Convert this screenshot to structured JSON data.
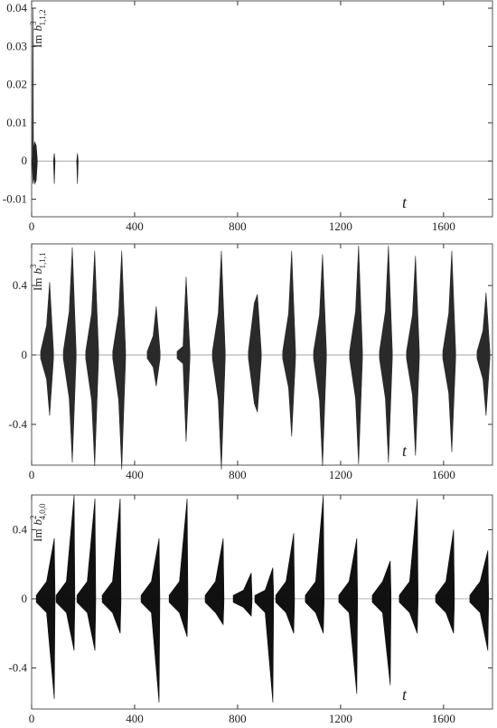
{
  "chart_data": [
    {
      "type": "area",
      "ylabel": {
        "text": "Im",
        "symbol": "b",
        "sup": "3",
        "sub": "1,1,2"
      },
      "xlabel": "t",
      "x": [
        0,
        3,
        5,
        7,
        12,
        18,
        22,
        40,
        85,
        88,
        91,
        130,
        175,
        178,
        181,
        220
      ],
      "series": [
        {
          "color": "#222",
          "values": [
            0,
            0.001,
            0.04,
            0.003,
            0.005,
            0.004,
            0.0005,
            null,
            0,
            0.002,
            0,
            null,
            0,
            0.002,
            0,
            null
          ]
        },
        {
          "color": "#222",
          "values": [
            0,
            -0.002,
            -0.006,
            -0.004,
            -0.006,
            -0.005,
            -0.0005,
            null,
            0,
            -0.006,
            0,
            null,
            0,
            -0.006,
            0,
            null
          ]
        }
      ],
      "xlim": [
        0,
        1790
      ],
      "xticks": [
        0,
        400,
        800,
        1200,
        1600
      ],
      "ylim": [
        -0.0146,
        0.0419
      ],
      "yticks": [
        -0.01,
        0,
        0.01,
        0.02,
        0.03,
        0.04
      ]
    },
    {
      "type": "area",
      "ylabel": {
        "text": "Im",
        "symbol": "b",
        "sup": "3",
        "sub": "1,1,1"
      },
      "xlabel": "t",
      "x": [
        35,
        58,
        70,
        85,
        95,
        123,
        146,
        158,
        173,
        183,
        210,
        233,
        245,
        260,
        270,
        315,
        338,
        350,
        365,
        375,
        449,
        472,
        484,
        499,
        509,
        565,
        588,
        600,
        615,
        625,
        702,
        725,
        737,
        752,
        762,
        842,
        865,
        877,
        892,
        902,
        975,
        998,
        1010,
        1025,
        1035,
        1095,
        1118,
        1130,
        1145,
        1155,
        1235,
        1258,
        1270,
        1285,
        1295,
        1351,
        1374,
        1386,
        1401,
        1411,
        1456,
        1479,
        1491,
        1506,
        1516,
        1597,
        1620,
        1632,
        1647,
        1657,
        1730,
        1753,
        1765,
        1780,
        1788
      ],
      "series": [
        {
          "color": "#2a2a2a",
          "values": [
            0.02,
            0.17,
            0.42,
            0.02,
            null,
            0.02,
            0.25,
            0.62,
            0.02,
            null,
            0.02,
            0.24,
            0.6,
            0.02,
            null,
            0.02,
            0.24,
            0.6,
            0.02,
            null,
            0.02,
            0.11,
            0.28,
            0.02,
            null,
            0.02,
            0.05,
            0.45,
            0.02,
            null,
            0.02,
            0.24,
            0.6,
            0.02,
            null,
            0.02,
            0.3,
            0.35,
            0.02,
            null,
            0.02,
            0.24,
            0.6,
            0.02,
            null,
            0.02,
            0.23,
            0.58,
            0.02,
            null,
            0.02,
            0.25,
            0.63,
            0.02,
            null,
            0.02,
            0.25,
            0.63,
            0.02,
            null,
            0.02,
            0.23,
            0.57,
            0.02,
            null,
            0.02,
            0.24,
            0.6,
            0.02,
            null,
            0.02,
            0.14,
            0.36,
            0.02,
            null
          ]
        },
        {
          "color": "#2a2a2a",
          "values": [
            -0.02,
            -0.14,
            -0.35,
            -0.02,
            null,
            -0.02,
            -0.25,
            -0.62,
            -0.02,
            null,
            -0.02,
            -0.26,
            -0.64,
            -0.02,
            null,
            -0.02,
            -0.26,
            -0.66,
            -0.02,
            null,
            -0.02,
            -0.07,
            -0.18,
            -0.02,
            null,
            -0.02,
            -0.05,
            -0.5,
            -0.02,
            null,
            -0.02,
            -0.26,
            -0.66,
            -0.02,
            null,
            -0.02,
            -0.28,
            -0.33,
            -0.02,
            null,
            -0.02,
            -0.19,
            -0.47,
            -0.02,
            null,
            -0.02,
            -0.26,
            -0.64,
            -0.02,
            null,
            -0.02,
            -0.25,
            -0.63,
            -0.02,
            null,
            -0.02,
            -0.25,
            -0.62,
            -0.02,
            null,
            -0.02,
            -0.23,
            -0.58,
            -0.02,
            null,
            -0.02,
            -0.22,
            -0.56,
            -0.02,
            null,
            -0.02,
            -0.14,
            -0.35,
            -0.02,
            null
          ]
        }
      ],
      "xlim": [
        0,
        1790
      ],
      "xticks": [
        0,
        400,
        800,
        1200,
        1600
      ],
      "ylim": [
        -0.635,
        0.64
      ],
      "yticks": [
        -0.4,
        0,
        0.4
      ]
    },
    {
      "type": "area",
      "ylabel": {
        "text": "Im",
        "symbol": "b",
        "sup": "2",
        "sub": "4,0,0"
      },
      "xlabel": "t",
      "x": [
        18,
        58,
        88,
        91,
        98,
        95,
        135,
        165,
        168,
        175,
        176,
        216,
        246,
        249,
        256,
        274,
        314,
        344,
        347,
        354,
        425,
        465,
        495,
        498,
        505,
        534,
        574,
        604,
        607,
        614,
        674,
        714,
        744,
        747,
        754,
        783,
        823,
        853,
        856,
        863,
        867,
        907,
        937,
        940,
        947,
        948,
        988,
        1018,
        1021,
        1028,
        1063,
        1103,
        1133,
        1136,
        1143,
        1193,
        1233,
        1263,
        1266,
        1273,
        1323,
        1363,
        1393,
        1396,
        1403,
        1428,
        1468,
        1498,
        1501,
        1508,
        1569,
        1609,
        1639,
        1642,
        1649,
        1702,
        1742,
        1772,
        1775,
        1782
      ],
      "series": [
        {
          "color": "#111",
          "values": [
            0.02,
            0.1,
            0.35,
            0.02,
            null,
            0.02,
            0.1,
            0.6,
            0.02,
            null,
            0.02,
            0.1,
            0.58,
            0.02,
            null,
            0.02,
            0.1,
            0.58,
            0.02,
            null,
            0.02,
            0.1,
            0.35,
            0.02,
            null,
            0.02,
            0.1,
            0.58,
            0.02,
            null,
            0.02,
            0.1,
            0.35,
            0.02,
            null,
            0.02,
            0.05,
            0.15,
            0.02,
            null,
            0.02,
            0.05,
            0.18,
            0.02,
            null,
            0.02,
            0.1,
            0.38,
            0.02,
            null,
            0.02,
            0.1,
            0.6,
            0.02,
            null,
            0.02,
            0.1,
            0.35,
            0.02,
            null,
            0.02,
            0.1,
            0.22,
            0.02,
            null,
            0.02,
            0.1,
            0.58,
            0.02,
            null,
            0.02,
            0.1,
            0.4,
            0.02,
            null,
            0.02,
            0.1,
            0.28,
            0.02,
            null
          ]
        },
        {
          "color": "#111",
          "values": [
            -0.02,
            -0.08,
            -0.58,
            -0.02,
            null,
            -0.02,
            -0.08,
            -0.3,
            -0.02,
            null,
            -0.02,
            -0.08,
            -0.3,
            -0.02,
            null,
            -0.02,
            -0.08,
            -0.2,
            -0.02,
            null,
            -0.02,
            -0.08,
            -0.6,
            -0.02,
            null,
            -0.02,
            -0.08,
            -0.22,
            -0.02,
            null,
            -0.02,
            -0.08,
            -0.15,
            -0.02,
            null,
            -0.02,
            -0.05,
            -0.1,
            -0.02,
            null,
            -0.02,
            -0.08,
            -0.6,
            -0.02,
            null,
            -0.02,
            -0.08,
            -0.2,
            -0.02,
            null,
            -0.02,
            -0.08,
            -0.2,
            -0.02,
            null,
            -0.02,
            -0.08,
            -0.55,
            -0.02,
            null,
            -0.02,
            -0.08,
            -0.5,
            -0.02,
            null,
            -0.02,
            -0.08,
            -0.2,
            -0.02,
            null,
            -0.02,
            -0.08,
            -0.2,
            -0.02,
            null,
            -0.02,
            -0.08,
            -0.3,
            -0.02,
            null
          ]
        }
      ],
      "xlim": [
        0,
        1790
      ],
      "xticks": [
        0,
        400,
        800,
        1200,
        1600
      ],
      "ylim": [
        -0.638,
        0.601
      ],
      "yticks": [
        -0.4,
        0,
        0.4
      ]
    }
  ]
}
